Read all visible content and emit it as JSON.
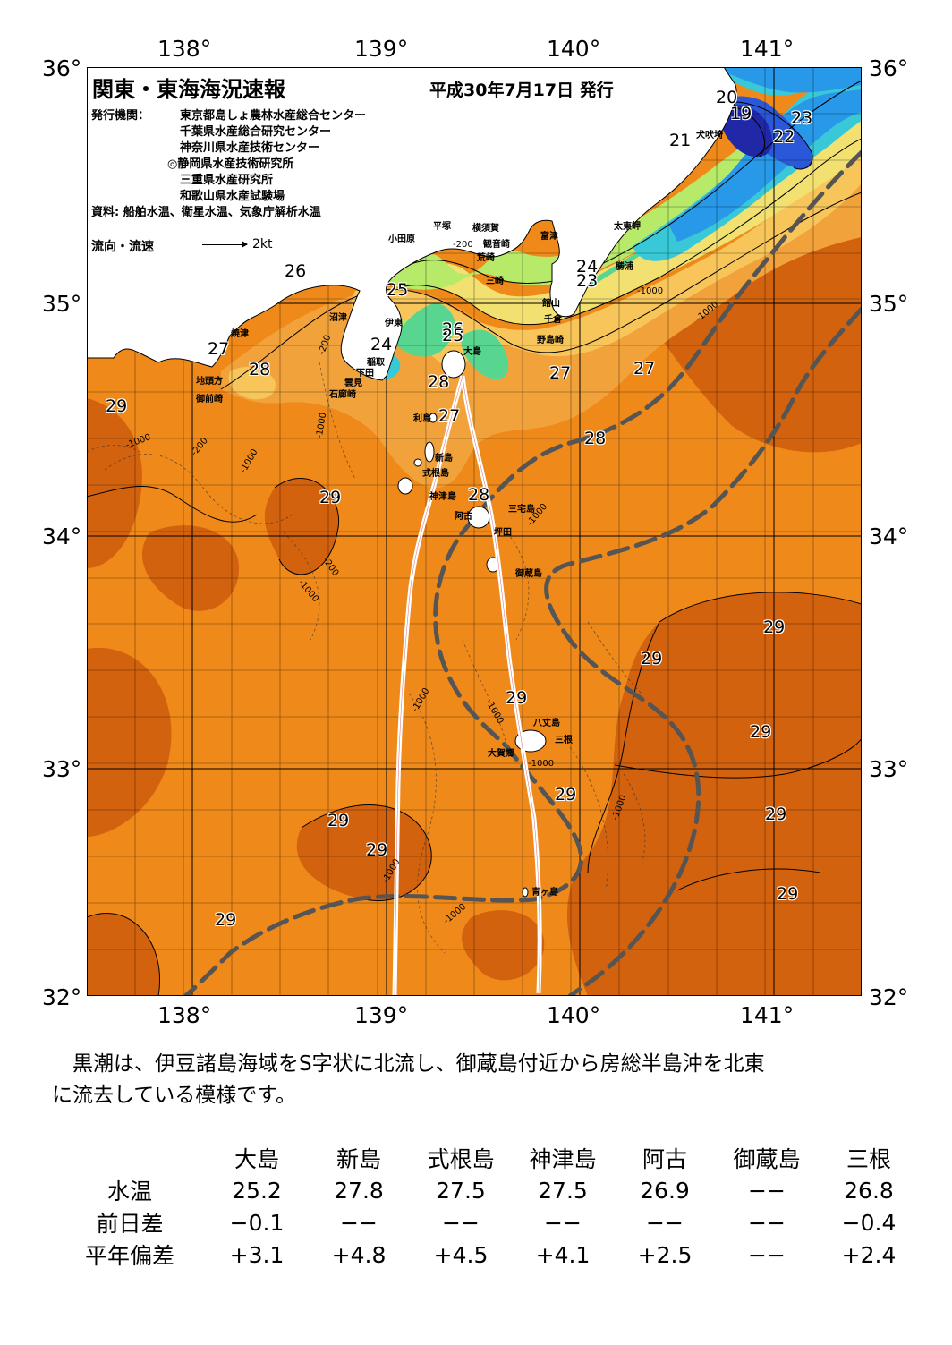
{
  "map": {
    "title": "関東・東海海況速報",
    "issue_date": "平成30年7月17日 発行",
    "issuer_label": "発行機関：",
    "issuers": [
      "東京都島しょ農林水産総合センター",
      "千葉県水産総合研究センター",
      "神奈川県水産技術センター",
      "◎静岡県水産技術研究所",
      "三重県水産研究所",
      "和歌山県水産試験場"
    ],
    "source": "資料: 船舶水温、衛星水温、気象庁解析水温",
    "legend_label": "流向・流速",
    "legend_speed": "2kt",
    "lon_labels": [
      "138°",
      "139°",
      "140°",
      "141°"
    ],
    "lat_labels": [
      "36°",
      "35°",
      "34°",
      "33°",
      "32°"
    ],
    "lon_range": [
      137.5,
      141.5
    ],
    "lat_range": [
      32,
      36
    ],
    "colors": {
      "water_warm_dark": "#d2620e",
      "water_warm": "#ef8a1a",
      "water_28": "#f2a23a",
      "water_27": "#f7c55a",
      "water_26": "#f2e070",
      "water_25": "#b8ea6a",
      "water_24": "#58d690",
      "water_23": "#38c8d8",
      "water_22": "#2898e8",
      "water_21": "#2a58d8",
      "water_20": "#2028a8",
      "kuroshio_axis": "#555555",
      "land": "#ffffff"
    },
    "place_names": [
      "小田原",
      "平塚",
      "横須賀",
      "観音崎",
      "荒崎",
      "三崎",
      "富津",
      "太東岬",
      "勝浦",
      "館山",
      "千倉",
      "野島崎",
      "沼津",
      "伊東",
      "焼津",
      "稲取",
      "下田",
      "雲見",
      "石廊崎",
      "地頭方",
      "御前崎",
      "大島",
      "利島",
      "新島",
      "式根島",
      "神津島",
      "三宅島",
      "阿古",
      "坪田",
      "御蔵島",
      "八丈島",
      "三根",
      "大賀郷",
      "青ヶ島",
      "犬吠埼"
    ],
    "isotherm_labels": [
      "20",
      "19",
      "21",
      "23",
      "22",
      "24",
      "23",
      "26",
      "25",
      "24",
      "26",
      "25",
      "27",
      "28",
      "27",
      "27",
      "28",
      "27",
      "29",
      "28",
      "28",
      "29",
      "29",
      "29",
      "29",
      "29",
      "29",
      "29",
      "29",
      "29",
      "29",
      "29"
    ],
    "depth_labels": [
      "-200",
      "-200",
      "-1000",
      "-1000",
      "-200",
      "-1000",
      "-1000",
      "-200",
      "-1000",
      "-1000",
      "-1000",
      "-1000",
      "-1000",
      "-1000",
      "-1000",
      "-1000",
      "-1000"
    ]
  },
  "note": [
    "　黒潮は、伊豆諸島海域をS字状に北流し、御蔵島付近から房総半島沖を北東",
    "に流去している模様です。"
  ],
  "table": {
    "islands": [
      "大島",
      "新島",
      "式根島",
      "神津島",
      "阿古",
      "御蔵島",
      "三根"
    ],
    "rows": [
      {
        "label": "水温",
        "values": [
          "25.2",
          "27.8",
          "27.5",
          "27.5",
          "26.9",
          "−−",
          "26.8"
        ]
      },
      {
        "label": "前日差",
        "values": [
          "−0.1",
          "−−",
          "−−",
          "−−",
          "−−",
          "−−",
          "−0.4"
        ]
      },
      {
        "label": "平年偏差",
        "values": [
          "+3.1",
          "+4.8",
          "+4.5",
          "+4.1",
          "+2.5",
          "−−",
          "+2.4"
        ]
      }
    ]
  }
}
